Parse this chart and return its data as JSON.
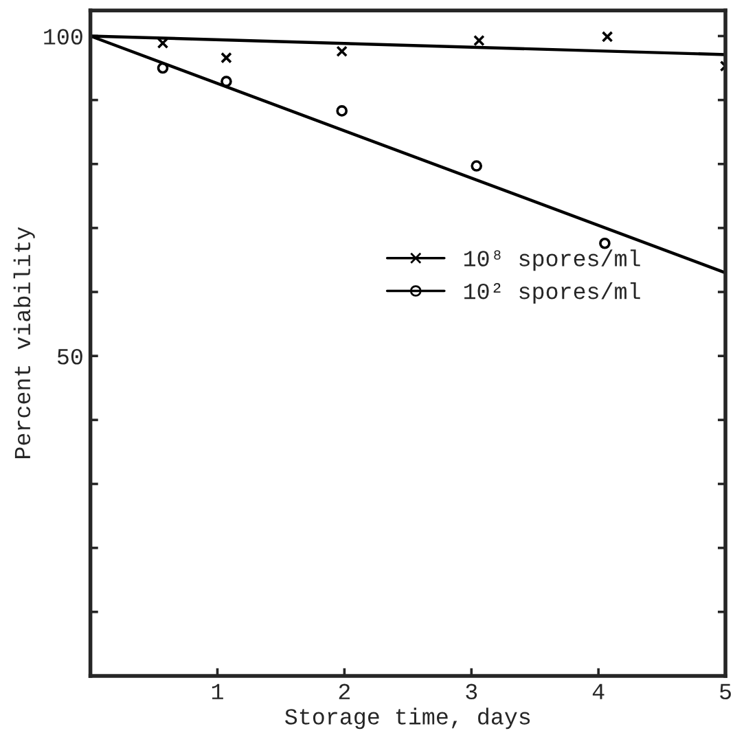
{
  "chart_data": {
    "type": "scatter",
    "xlabel": "Storage time, days",
    "ylabel": "Percent viability",
    "xlim": [
      0,
      5
    ],
    "ylim": [
      0,
      104
    ],
    "xticks": [
      1,
      2,
      3,
      4,
      5
    ],
    "yticks": [
      {
        "value": 10,
        "label": null
      },
      {
        "value": 20,
        "label": null
      },
      {
        "value": 30,
        "label": null
      },
      {
        "value": 40,
        "label": null
      },
      50,
      {
        "value": 60,
        "label": null
      },
      {
        "value": 70,
        "label": null
      },
      {
        "value": 80,
        "label": null
      },
      {
        "value": 90,
        "label": null
      },
      100
    ],
    "grid": false,
    "legend": "right",
    "series": [
      {
        "name": "10⁸ spores/ml",
        "color": "#000000",
        "marker": "cross",
        "x": [
          0.57,
          1.07,
          1.98,
          3.06,
          4.07,
          5.0
        ],
        "values": [
          98.9,
          96.6,
          97.6,
          99.3,
          99.9,
          95.3
        ]
      },
      {
        "name": "10² spores/ml",
        "color": "#000000",
        "marker": "circle",
        "x": [
          0.57,
          1.07,
          1.98,
          3.04,
          4.05
        ],
        "values": [
          95.0,
          92.9,
          88.3,
          79.7,
          67.6
        ]
      },
      {
        "type": "line",
        "color": "#000000",
        "marker": "none",
        "x": [
          0,
          5
        ],
        "values": [
          100,
          97.1
        ]
      },
      {
        "type": "line",
        "color": "#000000",
        "marker": "none",
        "x": [
          0,
          5
        ],
        "values": [
          100,
          63
        ]
      }
    ]
  }
}
